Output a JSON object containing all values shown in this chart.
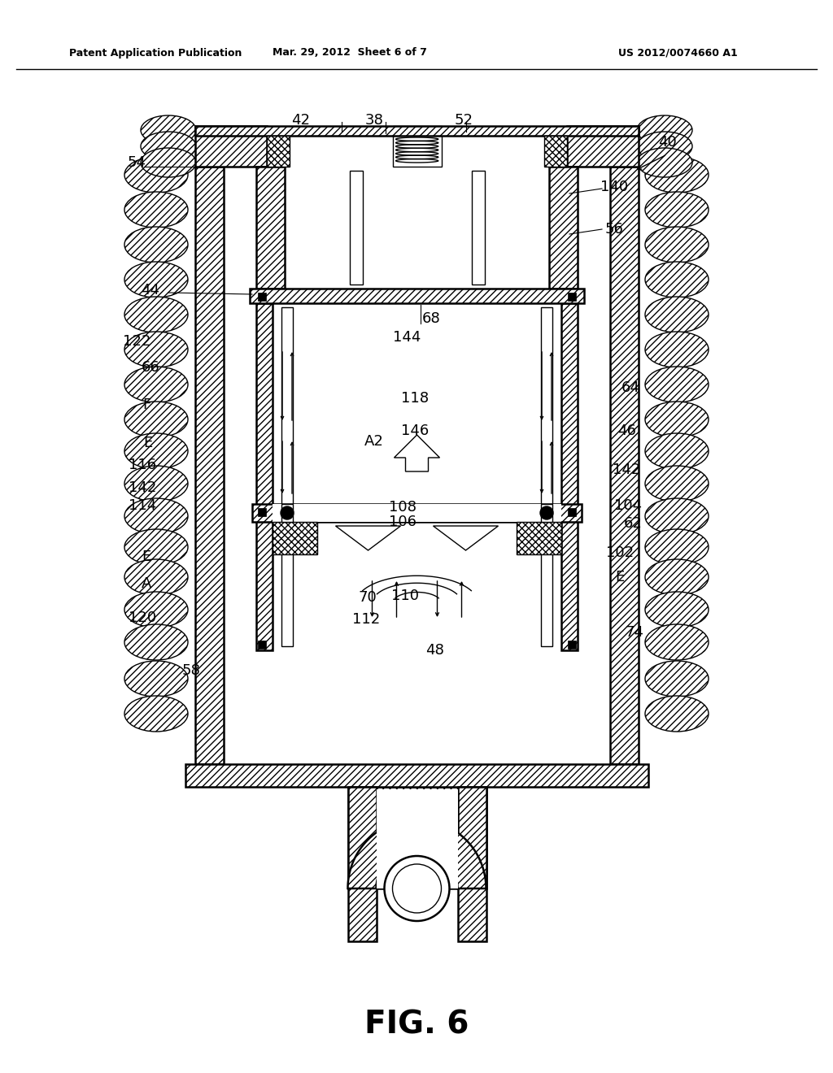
{
  "title_left": "Patent Application Publication",
  "title_mid": "Mar. 29, 2012  Sheet 6 of 7",
  "title_right": "US 2012/0074660 A1",
  "fig_label": "FIG. 6",
  "background_color": "#ffffff",
  "line_color": "#000000"
}
